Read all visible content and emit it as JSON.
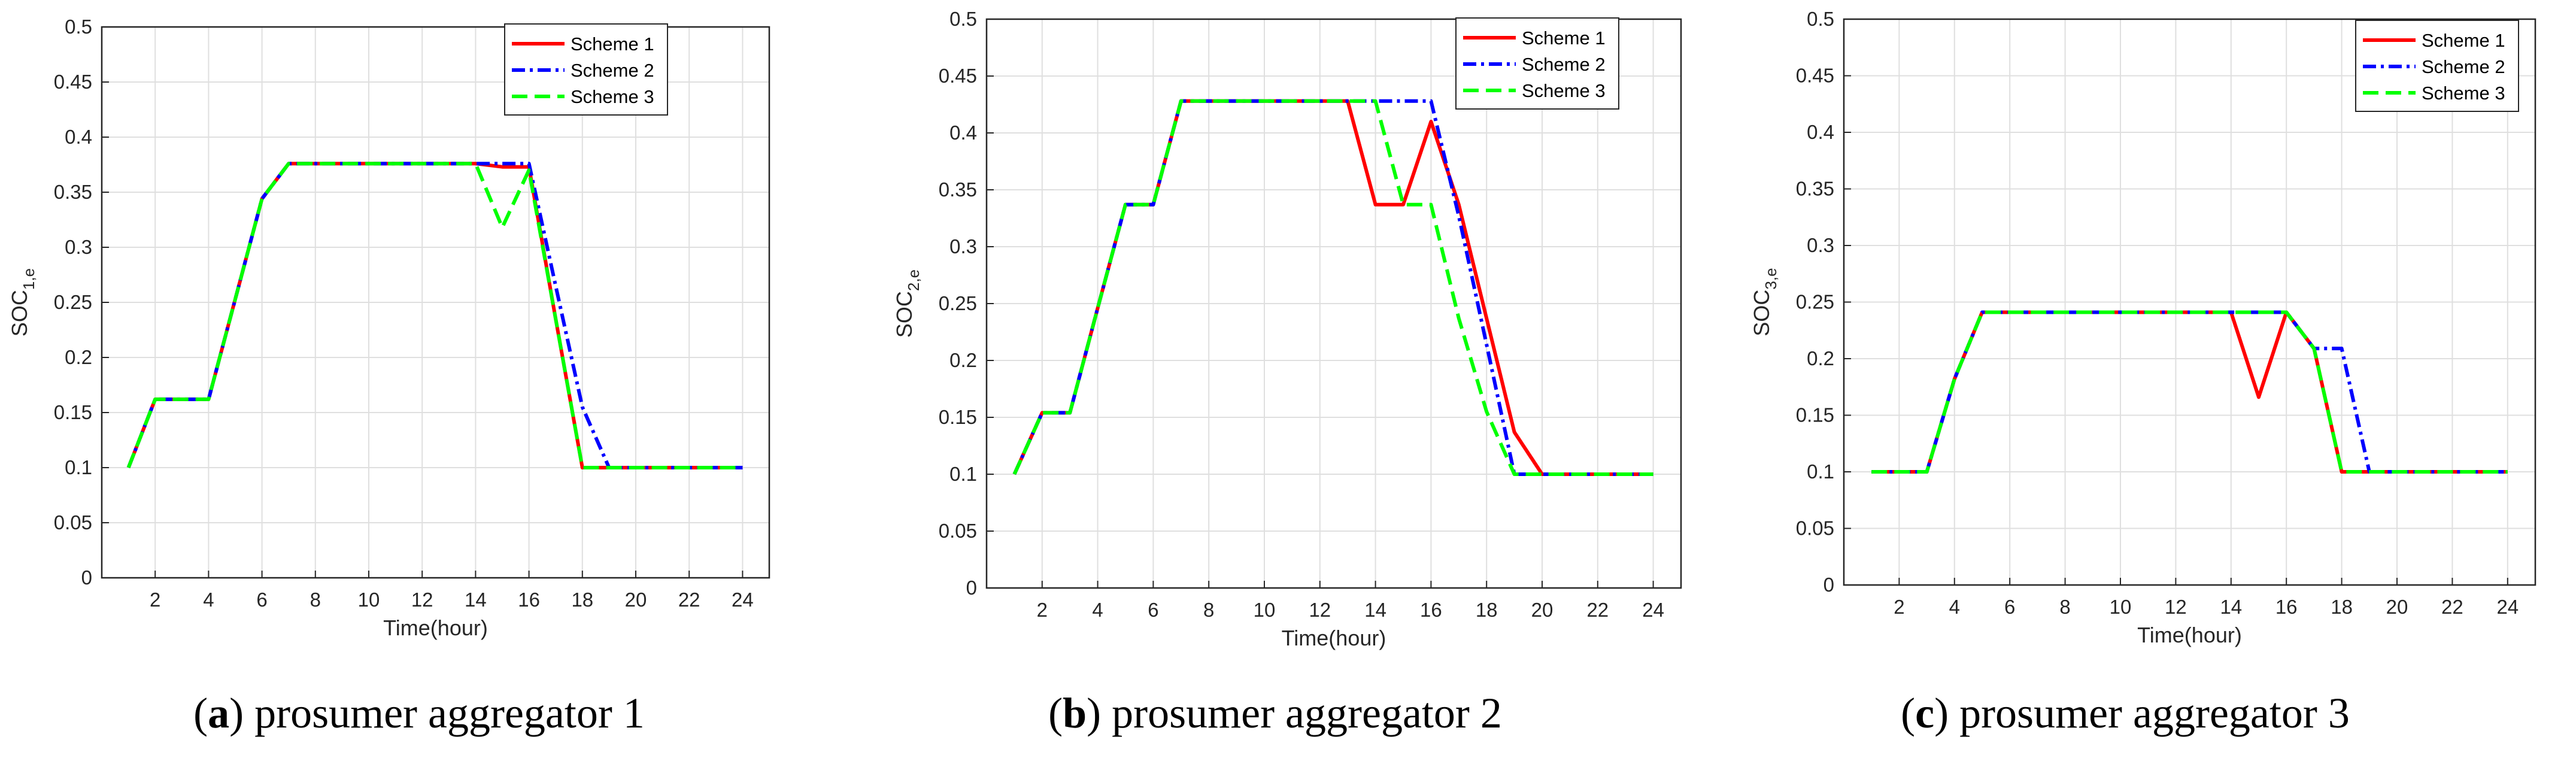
{
  "chart_data": [
    {
      "type": "line",
      "panel_letter": "a",
      "caption_text": "prosumer aggregator 1",
      "ylabel_main": "SOC",
      "ylabel_sub": "1,e",
      "xlabel": "Time(hour)",
      "xlim": [
        0,
        25
      ],
      "ylim": [
        0,
        0.5
      ],
      "xticks": [
        2,
        4,
        6,
        8,
        10,
        12,
        14,
        16,
        18,
        20,
        22,
        24
      ],
      "yticks": [
        0,
        0.05,
        0.1,
        0.15,
        0.2,
        0.25,
        0.3,
        0.35,
        0.4,
        0.45,
        0.5
      ],
      "ytick_labels": [
        "0",
        "0.05",
        "0.1",
        "0.15",
        "0.2",
        "0.25",
        "0.3",
        "0.35",
        "0.4",
        "0.45",
        "0.5"
      ],
      "x": [
        1,
        2,
        3,
        4,
        5,
        6,
        7,
        8,
        9,
        10,
        11,
        12,
        13,
        14,
        15,
        16,
        17,
        18,
        19,
        20,
        21,
        22,
        23,
        24
      ],
      "series": [
        {
          "name": "Scheme 1",
          "color": "#ff0000",
          "dash": "solid",
          "values": [
            0.1,
            0.162,
            0.162,
            0.162,
            0.253,
            0.344,
            0.376,
            0.376,
            0.376,
            0.376,
            0.376,
            0.376,
            0.376,
            0.376,
            0.373,
            0.373,
            0.235,
            0.1,
            0.1,
            0.1,
            0.1,
            0.1,
            0.1,
            0.1
          ]
        },
        {
          "name": "Scheme 2",
          "color": "#0000ff",
          "dash": "dashdot",
          "values": [
            0.1,
            0.162,
            0.162,
            0.162,
            0.253,
            0.344,
            0.376,
            0.376,
            0.376,
            0.376,
            0.376,
            0.376,
            0.376,
            0.376,
            0.376,
            0.376,
            0.265,
            0.155,
            0.1,
            0.1,
            0.1,
            0.1,
            0.1,
            0.1
          ]
        },
        {
          "name": "Scheme 3",
          "color": "#00ff00",
          "dash": "dashed",
          "values": [
            0.1,
            0.162,
            0.162,
            0.162,
            0.253,
            0.344,
            0.376,
            0.376,
            0.376,
            0.376,
            0.376,
            0.376,
            0.376,
            0.376,
            0.318,
            0.37,
            0.235,
            0.1,
            0.1,
            0.1,
            0.1,
            0.1,
            0.1,
            0.1
          ]
        }
      ]
    },
    {
      "type": "line",
      "panel_letter": "b",
      "caption_text": "prosumer aggregator 2",
      "ylabel_main": "SOC",
      "ylabel_sub": "2,e",
      "xlabel": "Time(hour)",
      "xlim": [
        0,
        25
      ],
      "ylim": [
        0,
        0.5
      ],
      "xticks": [
        2,
        4,
        6,
        8,
        10,
        12,
        14,
        16,
        18,
        20,
        22,
        24
      ],
      "yticks": [
        0,
        0.05,
        0.1,
        0.15,
        0.2,
        0.25,
        0.3,
        0.35,
        0.4,
        0.45,
        0.5
      ],
      "ytick_labels": [
        "0",
        "0.05",
        "0.1",
        "0.15",
        "0.2",
        "0.25",
        "0.3",
        "0.35",
        "0.4",
        "0.45",
        "0.5"
      ],
      "x": [
        1,
        2,
        3,
        4,
        5,
        6,
        7,
        8,
        9,
        10,
        11,
        12,
        13,
        14,
        15,
        16,
        17,
        18,
        19,
        20,
        21,
        22,
        23,
        24
      ],
      "series": [
        {
          "name": "Scheme 1",
          "color": "#ff0000",
          "dash": "solid",
          "values": [
            0.1,
            0.154,
            0.154,
            0.246,
            0.337,
            0.337,
            0.428,
            0.428,
            0.428,
            0.428,
            0.428,
            0.428,
            0.428,
            0.337,
            0.337,
            0.41,
            0.337,
            0.237,
            0.137,
            0.1,
            0.1,
            0.1,
            0.1,
            0.1
          ]
        },
        {
          "name": "Scheme 2",
          "color": "#0000ff",
          "dash": "dashdot",
          "values": [
            0.1,
            0.154,
            0.154,
            0.246,
            0.337,
            0.337,
            0.428,
            0.428,
            0.428,
            0.428,
            0.428,
            0.428,
            0.428,
            0.428,
            0.428,
            0.428,
            0.327,
            0.214,
            0.1,
            0.1,
            0.1,
            0.1,
            0.1,
            0.1
          ]
        },
        {
          "name": "Scheme 3",
          "color": "#00ff00",
          "dash": "dashed",
          "values": [
            0.1,
            0.154,
            0.154,
            0.246,
            0.337,
            0.337,
            0.428,
            0.428,
            0.428,
            0.428,
            0.428,
            0.428,
            0.428,
            0.428,
            0.337,
            0.337,
            0.237,
            0.155,
            0.1,
            0.1,
            0.1,
            0.1,
            0.1,
            0.1
          ]
        }
      ]
    },
    {
      "type": "line",
      "panel_letter": "c",
      "caption_text": "prosumer aggregator 3",
      "ylabel_main": "SOC",
      "ylabel_sub": "3,e",
      "xlabel": "Time(hour)",
      "xlim": [
        0,
        25
      ],
      "ylim": [
        0,
        0.5
      ],
      "xticks": [
        2,
        4,
        6,
        8,
        10,
        12,
        14,
        16,
        18,
        20,
        22,
        24
      ],
      "yticks": [
        0,
        0.05,
        0.1,
        0.15,
        0.2,
        0.25,
        0.3,
        0.35,
        0.4,
        0.45,
        0.5
      ],
      "ytick_labels": [
        "0",
        "0.05",
        "0.1",
        "0.15",
        "0.2",
        "0.25",
        "0.3",
        "0.35",
        "0.4",
        "0.45",
        "0.5"
      ],
      "x": [
        1,
        2,
        3,
        4,
        5,
        6,
        7,
        8,
        9,
        10,
        11,
        12,
        13,
        14,
        15,
        16,
        17,
        18,
        19,
        20,
        21,
        22,
        23,
        24
      ],
      "series": [
        {
          "name": "Scheme 1",
          "color": "#ff0000",
          "dash": "solid",
          "values": [
            0.1,
            0.1,
            0.1,
            0.182,
            0.241,
            0.241,
            0.241,
            0.241,
            0.241,
            0.241,
            0.241,
            0.241,
            0.241,
            0.241,
            0.166,
            0.241,
            0.209,
            0.1,
            0.1,
            0.1,
            0.1,
            0.1,
            0.1,
            0.1
          ]
        },
        {
          "name": "Scheme 2",
          "color": "#0000ff",
          "dash": "dashdot",
          "values": [
            0.1,
            0.1,
            0.1,
            0.182,
            0.241,
            0.241,
            0.241,
            0.241,
            0.241,
            0.241,
            0.241,
            0.241,
            0.241,
            0.241,
            0.241,
            0.241,
            0.209,
            0.209,
            0.1,
            0.1,
            0.1,
            0.1,
            0.1,
            0.1
          ]
        },
        {
          "name": "Scheme 3",
          "color": "#00ff00",
          "dash": "dashed",
          "values": [
            0.1,
            0.1,
            0.1,
            0.182,
            0.241,
            0.241,
            0.241,
            0.241,
            0.241,
            0.241,
            0.241,
            0.241,
            0.241,
            0.241,
            0.241,
            0.241,
            0.209,
            0.1,
            0.1,
            0.1,
            0.1,
            0.1,
            0.1,
            0.1
          ]
        }
      ]
    }
  ]
}
